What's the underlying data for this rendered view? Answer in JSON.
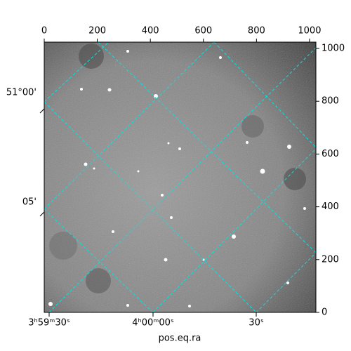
{
  "chart_data": {
    "type": "image",
    "xlabel": "pos.eq.ra",
    "xlim": [
      0,
      1024
    ],
    "ylim": [
      0,
      1024
    ],
    "xticks": [
      0,
      200,
      400,
      600,
      800,
      1000
    ],
    "yticks": [
      0,
      200,
      400,
      600,
      800,
      1000
    ],
    "ra_ticks": [
      "3ʰ59ᵐ30ˢ",
      "4ʰ00ᵐ00ˢ",
      "30ˢ"
    ],
    "dec_ticks": [
      "51°00'",
      "05'"
    ],
    "grid": true,
    "grid_color": "#00e5e5"
  }
}
